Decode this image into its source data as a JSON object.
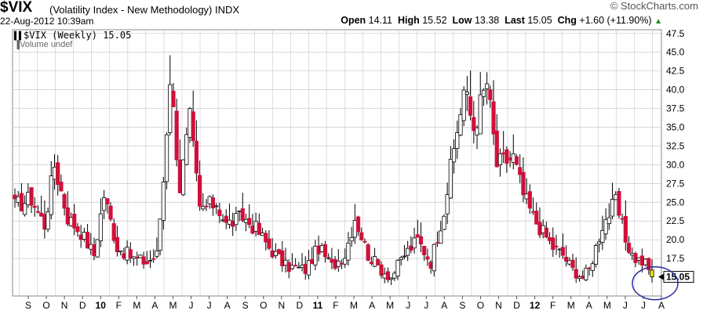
{
  "header": {
    "symbol": "$VIX",
    "description": "(Volatility Index - New Methodology)",
    "exchange": "INDX",
    "datetime": "22-Aug-2012 10:39am",
    "brand": "© StockCharts.com",
    "open_label": "Open",
    "open": "14.11",
    "high_label": "High",
    "high": "15.52",
    "low_label": "Low",
    "low": "13.38",
    "last_label": "Last",
    "last": "15.05",
    "chg_label": "Chg",
    "chg": "+1.60 (+11.90%)",
    "chg_arrow": "▲"
  },
  "legend": {
    "series": "$VIX (Weekly) 15.05",
    "volume": "Volume undef"
  },
  "colors": {
    "up": "#ffffff",
    "down": "#d0103a",
    "outline": "#000000",
    "grid": "#c8c8c8",
    "highlight": "#f3e600",
    "circle": "#2b2f9e"
  },
  "chart_data": {
    "type": "candlestick",
    "title": "$VIX (Weekly) 15.05",
    "ylim": [
      12.5,
      48
    ],
    "y_ticks": [
      "47.5",
      "45.0",
      "42.5",
      "40.0",
      "37.5",
      "35.0",
      "32.5",
      "30.0",
      "27.5",
      "25.0",
      "22.5",
      "20.0",
      "17.5",
      "15.05"
    ],
    "x_labels": [
      "S",
      "O",
      "N",
      "D",
      "10",
      "F",
      "M",
      "A",
      "M",
      "J",
      "J",
      "A",
      "S",
      "O",
      "N",
      "D",
      "11",
      "F",
      "M",
      "A",
      "M",
      "J",
      "J",
      "A",
      "S",
      "O",
      "N",
      "D",
      "12",
      "F",
      "M",
      "A",
      "M",
      "J",
      "J",
      "A"
    ],
    "last_value": "15.05",
    "anchors": [
      [
        0,
        24.5
      ],
      [
        5,
        25.5
      ],
      [
        9,
        22
      ],
      [
        12,
        30
      ],
      [
        16,
        23
      ],
      [
        20,
        21
      ],
      [
        24,
        18
      ],
      [
        27,
        26
      ],
      [
        31,
        19
      ],
      [
        36,
        17.5
      ],
      [
        40,
        17
      ],
      [
        43,
        18
      ],
      [
        45,
        28
      ],
      [
        47,
        42
      ],
      [
        50,
        27
      ],
      [
        53,
        36
      ],
      [
        56,
        24
      ],
      [
        61,
        25
      ],
      [
        64,
        22
      ],
      [
        69,
        23
      ],
      [
        73,
        21.5
      ],
      [
        77,
        19
      ],
      [
        82,
        16.5
      ],
      [
        88,
        16
      ],
      [
        92,
        19
      ],
      [
        96,
        16.5
      ],
      [
        100,
        18
      ],
      [
        103,
        23
      ],
      [
        107,
        18
      ],
      [
        111,
        16
      ],
      [
        114,
        15
      ],
      [
        118,
        18
      ],
      [
        122,
        20
      ],
      [
        126,
        17
      ],
      [
        130,
        24
      ],
      [
        133,
        32
      ],
      [
        136,
        40
      ],
      [
        139,
        35
      ],
      [
        143,
        41
      ],
      [
        146,
        30
      ],
      [
        151,
        31
      ],
      [
        154,
        26
      ],
      [
        157,
        23
      ],
      [
        160,
        21
      ],
      [
        163,
        19
      ],
      [
        166,
        18
      ],
      [
        169,
        16
      ],
      [
        172,
        15
      ],
      [
        174,
        16
      ],
      [
        178,
        22
      ],
      [
        182,
        25
      ],
      [
        185,
        20
      ],
      [
        187,
        18
      ],
      [
        188,
        17.5
      ],
      [
        191,
        16.8
      ],
      [
        193,
        15.05
      ]
    ],
    "highlight_last": true
  }
}
